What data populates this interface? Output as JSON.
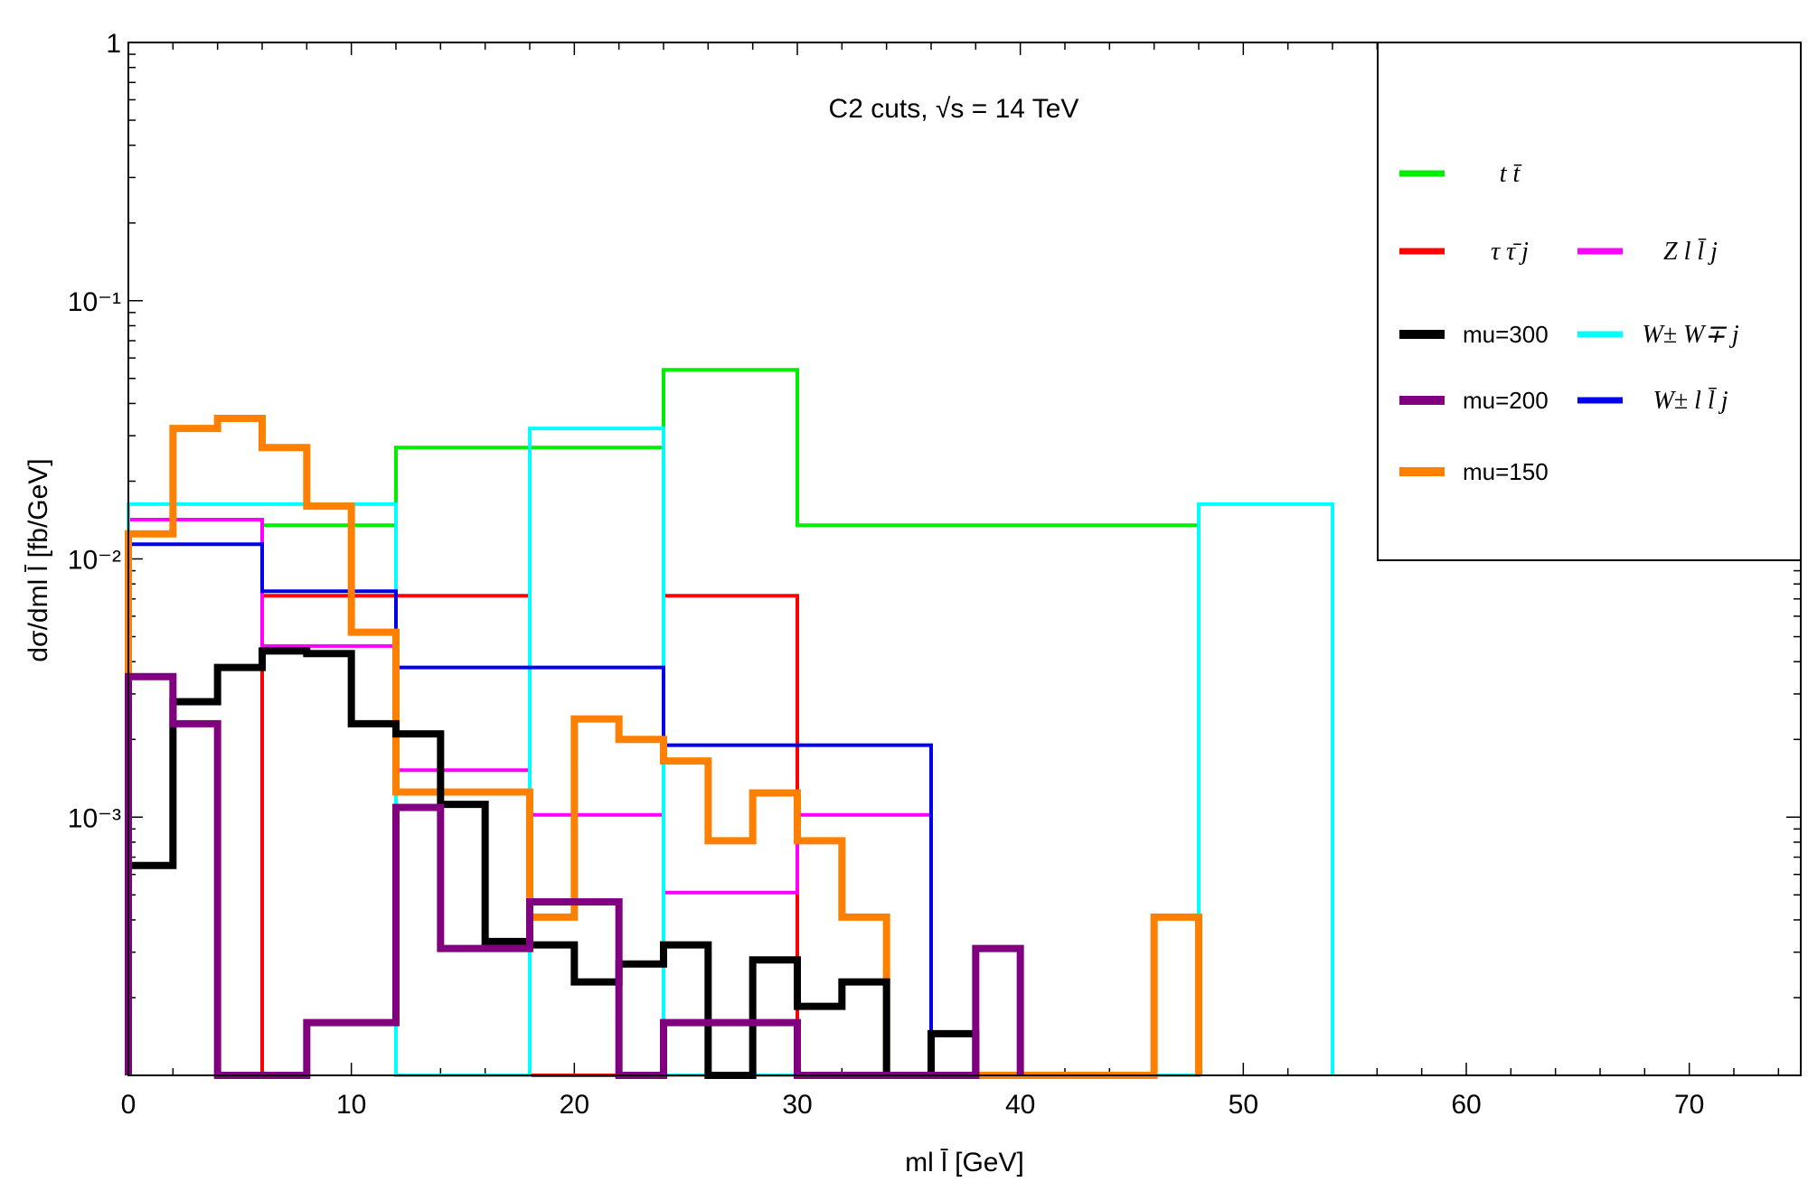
{
  "chart_data": {
    "type": "step-histogram",
    "title": "C2 cuts, √s = 14 TeV",
    "xlabel": "ml l̄ [GeV]",
    "ylabel": "dσ/dml l̄ [fb/GeV]",
    "yscale": "log",
    "xlim": [
      0,
      75
    ],
    "ylim": [
      0.0001,
      1
    ],
    "xticks": [
      0,
      10,
      20,
      30,
      40,
      50,
      60,
      70
    ],
    "xtick_labels": [
      "0",
      "10",
      "20",
      "30",
      "40",
      "50",
      "60",
      "70"
    ],
    "yticks": [
      0.001,
      0.01,
      0.1,
      1
    ],
    "ytick_labels": [
      "10⁻³",
      "10⁻²",
      "10⁻¹",
      "1"
    ],
    "legend_position": "top-right",
    "series": [
      {
        "name": "t t̄",
        "color": "#00ee00",
        "style": "thin",
        "edges": [
          6,
          12,
          24,
          30,
          48
        ],
        "values": [
          0.0135,
          0.027,
          0.054,
          0.0135
        ]
      },
      {
        "name": "τ τ̄ j",
        "color": "#ff0000",
        "style": "thin",
        "edges": [
          6,
          18,
          24,
          30
        ],
        "values": [
          0.0072,
          null,
          0.0072
        ]
      },
      {
        "name": "Z l l̄ j",
        "color": "#ff00ff",
        "style": "thin",
        "edges": [
          0,
          6,
          12,
          18,
          24,
          30,
          36
        ],
        "values": [
          0.0142,
          0.0046,
          0.00152,
          0.00102,
          0.00051,
          0.00102
        ]
      },
      {
        "name": "W± W∓ j",
        "color": "#00ffff",
        "style": "thin",
        "edges": [
          0,
          12,
          18,
          24,
          48,
          54
        ],
        "values": [
          0.0163,
          null,
          0.032,
          null,
          0.0163
        ]
      },
      {
        "name": "W± l l̄ j",
        "color": "#0000ee",
        "style": "thin",
        "edges": [
          0,
          6,
          12,
          24,
          36
        ],
        "values": [
          0.0114,
          0.0075,
          0.0038,
          0.0019
        ]
      },
      {
        "name": "mu=300",
        "color": "#000000",
        "style": "thick",
        "edges": [
          0,
          2,
          4,
          6,
          8,
          10,
          12,
          14,
          16,
          18,
          20,
          22,
          24,
          26,
          28,
          30,
          32,
          34,
          36,
          38
        ],
        "values": [
          0.00065,
          0.0028,
          0.0038,
          0.0044,
          0.0043,
          0.0023,
          0.0021,
          0.00112,
          0.00033,
          0.00032,
          0.00023,
          0.00027,
          0.00032,
          null,
          0.00028,
          0.000185,
          0.00023,
          null,
          0.000145
        ]
      },
      {
        "name": "mu=200",
        "color": "#800080",
        "style": "thick",
        "edges": [
          0,
          2,
          4,
          8,
          12,
          14,
          18,
          22,
          24,
          30,
          38,
          40
        ],
        "values": [
          0.0035,
          0.0023,
          null,
          0.00016,
          0.00109,
          0.00031,
          0.00047,
          null,
          0.00016,
          null,
          0.00031
        ]
      },
      {
        "name": "mu=150",
        "color": "#ff8000",
        "style": "thick",
        "edges": [
          0,
          2,
          4,
          6,
          8,
          10,
          12,
          18,
          20,
          22,
          24,
          26,
          28,
          30,
          32,
          34,
          46,
          48
        ],
        "values": [
          0.0125,
          0.032,
          0.035,
          0.027,
          0.016,
          0.0052,
          0.00125,
          0.00041,
          0.0024,
          0.002,
          0.00165,
          0.00081,
          0.00124,
          0.00081,
          0.00041,
          null,
          0.00041
        ]
      }
    ],
    "legend": [
      {
        "label": "t t̄",
        "color": "#00ee00",
        "style": "thin"
      },
      {
        "label": "τ τ̄ j",
        "color": "#ff0000",
        "style": "thin"
      },
      {
        "label": "Z l l̄ j",
        "color": "#ff00ff",
        "style": "thin"
      },
      {
        "label": "mu=300",
        "color": "#000000",
        "style": "thick"
      },
      {
        "label": "W± W∓ j",
        "color": "#00ffff",
        "style": "thin"
      },
      {
        "label": "mu=200",
        "color": "#800080",
        "style": "thick"
      },
      {
        "label": "W± l l̄ j",
        "color": "#0000ee",
        "style": "thin"
      },
      {
        "label": "mu=150",
        "color": "#ff8000",
        "style": "thick"
      }
    ]
  }
}
